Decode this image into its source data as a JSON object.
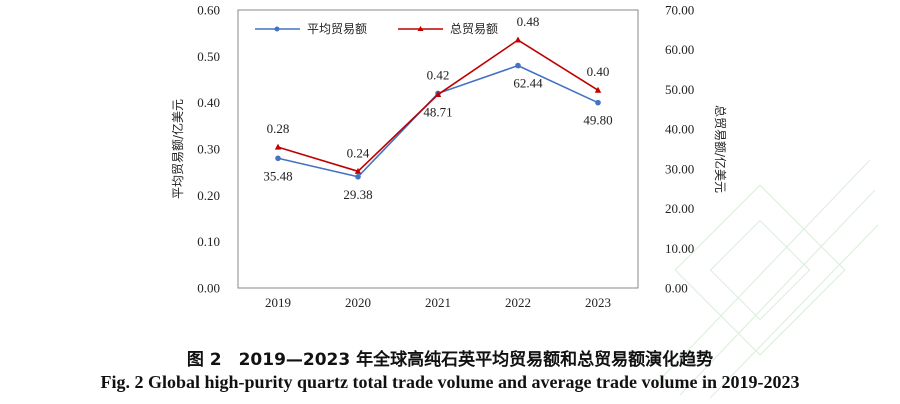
{
  "chart_data": {
    "type": "line",
    "categories": [
      "2019",
      "2020",
      "2021",
      "2022",
      "2023"
    ],
    "series": [
      {
        "name": "平均贸易额",
        "axis": "left",
        "color": "#4472c4",
        "values": [
          0.28,
          0.24,
          0.42,
          0.48,
          0.4
        ],
        "labels": [
          "0.28",
          "0.24",
          "0.42",
          "0.48",
          "0.40"
        ]
      },
      {
        "name": "总贸易额",
        "axis": "right",
        "color": "#c00000",
        "values": [
          35.48,
          29.38,
          48.71,
          62.44,
          49.8
        ],
        "labels": [
          "35.48",
          "29.38",
          "48.71",
          "62.44",
          "49.80"
        ]
      }
    ],
    "ylabel": "平均贸易额/亿美元",
    "y2label": "总贸易额/亿美元",
    "ylim": [
      0,
      0.6
    ],
    "y2lim": [
      0,
      70
    ],
    "yticks": [
      "0.00",
      "0.10",
      "0.20",
      "0.30",
      "0.40",
      "0.50",
      "0.60"
    ],
    "y2ticks": [
      "0.00",
      "10.00",
      "20.00",
      "30.00",
      "40.00",
      "50.00",
      "60.00",
      "70.00"
    ],
    "legend": "top-left",
    "grid": false
  },
  "caption": {
    "zh": "图 2　2019—2023 年全球高纯石英平均贸易额和总贸易额演化趋势",
    "en": "Fig. 2   Global high-purity quartz total trade volume and average trade volume in 2019-2023"
  }
}
